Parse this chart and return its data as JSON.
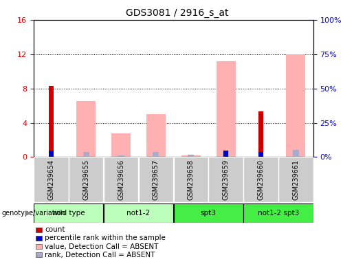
{
  "title": "GDS3081 / 2916_s_at",
  "samples": [
    "GSM239654",
    "GSM239655",
    "GSM239656",
    "GSM239657",
    "GSM239658",
    "GSM239659",
    "GSM239660",
    "GSM239661"
  ],
  "groups": [
    {
      "label": "wild type",
      "start": 0,
      "end": 1,
      "color": "#ccffcc"
    },
    {
      "label": "not1-2",
      "start": 2,
      "end": 3,
      "color": "#ccffcc"
    },
    {
      "label": "spt3",
      "start": 4,
      "end": 5,
      "color": "#44ee44"
    },
    {
      "label": "not1-2 spt3",
      "start": 6,
      "end": 7,
      "color": "#44ee44"
    }
  ],
  "red_bars": [
    8.3,
    0.0,
    0.0,
    0.0,
    0.0,
    0.15,
    5.3,
    0.0
  ],
  "blue_bars": [
    4.5,
    0.0,
    0.0,
    0.0,
    0.0,
    4.7,
    3.5,
    0.0
  ],
  "pink_bars": [
    0.0,
    6.5,
    2.8,
    5.0,
    0.2,
    11.2,
    0.0,
    12.0
  ],
  "ltblue_bars": [
    0.0,
    3.8,
    1.0,
    3.7,
    1.5,
    4.7,
    0.0,
    5.0
  ],
  "left_ylim": [
    0,
    16
  ],
  "right_ylim": [
    0,
    100
  ],
  "left_yticks": [
    0,
    4,
    8,
    12,
    16
  ],
  "right_yticks": [
    0,
    25,
    50,
    75,
    100
  ],
  "right_yticklabels": [
    "0%",
    "25%",
    "50%",
    "75%",
    "100%"
  ],
  "left_tick_color": "#cc0000",
  "right_tick_color": "#0000cc",
  "colors": {
    "red": "#cc0000",
    "blue": "#0000cc",
    "pink": "#ffb0b0",
    "light_blue": "#aaaacc",
    "plot_bg": "#ffffff",
    "sample_bg": "#cccccc",
    "gt_light": "#bbffbb",
    "gt_bright": "#44ee44"
  },
  "legend_items": [
    {
      "label": "count",
      "color": "#cc0000"
    },
    {
      "label": "percentile rank within the sample",
      "color": "#0000cc"
    },
    {
      "label": "value, Detection Call = ABSENT",
      "color": "#ffb0b0"
    },
    {
      "label": "rank, Detection Call = ABSENT",
      "color": "#aaaacc"
    }
  ],
  "pink_bar_width": 0.55,
  "ltblue_bar_width": 0.18,
  "red_bar_width": 0.13,
  "blue_bar_width": 0.13
}
